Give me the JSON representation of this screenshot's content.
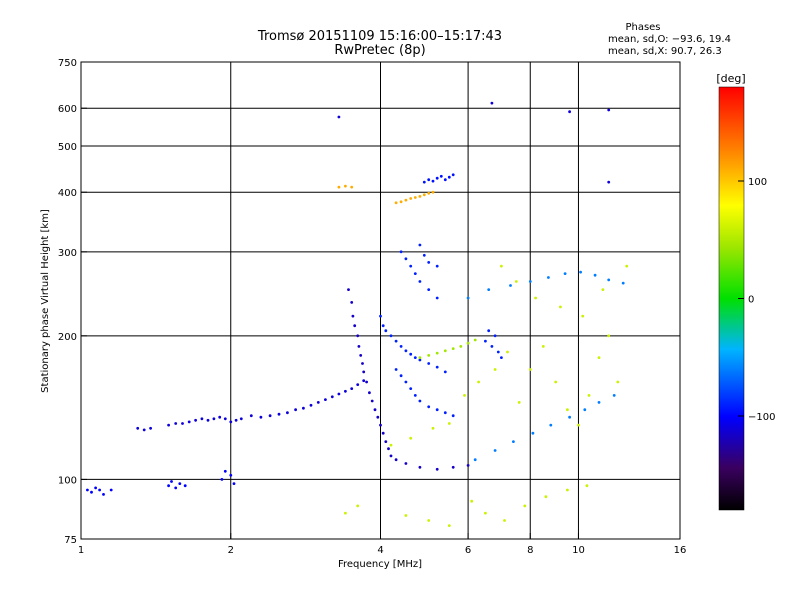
{
  "chart_data": {
    "type": "scatter",
    "title": "Tromsø 20151109 15:16:00–15:17:43",
    "subtitle": "RwPretec (8p)",
    "xlabel": "Frequency [MHz]",
    "ylabel": "Stationary phase Virtual Height [km]",
    "xscale": "log",
    "yscale": "log",
    "xlim": [
      1,
      16
    ],
    "ylim": [
      75,
      750
    ],
    "x_ticks": [
      1,
      2,
      4,
      6,
      8,
      10,
      16
    ],
    "y_ticks": [
      75,
      100,
      200,
      300,
      400,
      500,
      600,
      750
    ],
    "x_gridlines": [
      2,
      4,
      6,
      8,
      10
    ],
    "y_gridlines": [
      100,
      200,
      300,
      400,
      500,
      600
    ],
    "legend": {
      "heading": "Phases",
      "line_o": "mean, sd,O: −93.6, 19.4",
      "line_x": "mean, sd,X:  90.7, 26.3"
    },
    "colorbar": {
      "label": "[deg]",
      "range": [
        -180,
        180
      ],
      "ticks": [
        100,
        0,
        -100
      ],
      "tick_labels": [
        "100",
        "0",
        "−100"
      ]
    },
    "clusters": [
      {
        "name": "low-E-trace",
        "phase": -100,
        "points": [
          [
            1.03,
            95
          ],
          [
            1.05,
            94
          ],
          [
            1.07,
            96
          ],
          [
            1.09,
            95
          ],
          [
            1.11,
            93
          ],
          [
            1.15,
            95
          ],
          [
            1.5,
            97
          ],
          [
            1.52,
            99
          ],
          [
            1.55,
            96
          ],
          [
            1.58,
            98
          ],
          [
            1.62,
            97
          ],
          [
            1.92,
            100
          ],
          [
            1.95,
            104
          ],
          [
            2.0,
            102
          ],
          [
            2.03,
            98
          ]
        ]
      },
      {
        "name": "E-layer-trace",
        "phase": -110,
        "points": [
          [
            1.3,
            128
          ],
          [
            1.34,
            127
          ],
          [
            1.38,
            128
          ],
          [
            1.5,
            130
          ],
          [
            1.55,
            131
          ],
          [
            1.6,
            131
          ],
          [
            1.65,
            132
          ],
          [
            1.7,
            133
          ],
          [
            1.75,
            134
          ],
          [
            1.8,
            133
          ],
          [
            1.85,
            134
          ],
          [
            1.9,
            135
          ],
          [
            1.95,
            134
          ],
          [
            2.0,
            132
          ],
          [
            2.05,
            133
          ],
          [
            2.1,
            134
          ],
          [
            2.2,
            136
          ],
          [
            2.3,
            135
          ],
          [
            2.4,
            136
          ],
          [
            2.5,
            137
          ],
          [
            2.6,
            138
          ],
          [
            2.7,
            140
          ],
          [
            2.8,
            141
          ],
          [
            2.9,
            143
          ],
          [
            3.0,
            145
          ],
          [
            3.1,
            147
          ],
          [
            3.2,
            149
          ],
          [
            3.3,
            151
          ],
          [
            3.4,
            153
          ],
          [
            3.5,
            155
          ],
          [
            3.6,
            158
          ],
          [
            3.7,
            161
          ]
        ]
      },
      {
        "name": "F-vertical-trace",
        "phase": -115,
        "points": [
          [
            3.45,
            250
          ],
          [
            3.5,
            235
          ],
          [
            3.52,
            220
          ],
          [
            3.55,
            210
          ],
          [
            3.6,
            200
          ],
          [
            3.62,
            190
          ],
          [
            3.65,
            182
          ],
          [
            3.68,
            175
          ],
          [
            3.7,
            168
          ],
          [
            3.75,
            160
          ],
          [
            3.8,
            152
          ],
          [
            3.85,
            146
          ],
          [
            3.9,
            140
          ],
          [
            3.95,
            135
          ],
          [
            4.0,
            130
          ],
          [
            4.05,
            125
          ],
          [
            4.1,
            120
          ],
          [
            4.15,
            116
          ],
          [
            4.2,
            112
          ],
          [
            4.3,
            110
          ],
          [
            4.5,
            108
          ],
          [
            4.8,
            106
          ],
          [
            5.2,
            105
          ],
          [
            5.6,
            106
          ],
          [
            6.0,
            107
          ]
        ]
      },
      {
        "name": "F-spread",
        "phase": -90,
        "points": [
          [
            4.0,
            220
          ],
          [
            4.05,
            210
          ],
          [
            4.1,
            205
          ],
          [
            4.2,
            200
          ],
          [
            4.3,
            195
          ],
          [
            4.4,
            190
          ],
          [
            4.5,
            186
          ],
          [
            4.6,
            183
          ],
          [
            4.7,
            180
          ],
          [
            4.8,
            178
          ],
          [
            5.0,
            175
          ],
          [
            5.2,
            172
          ],
          [
            5.4,
            168
          ],
          [
            4.3,
            170
          ],
          [
            4.4,
            165
          ],
          [
            4.5,
            160
          ],
          [
            4.6,
            155
          ],
          [
            4.7,
            150
          ],
          [
            4.8,
            146
          ],
          [
            5.0,
            142
          ],
          [
            5.2,
            140
          ],
          [
            5.4,
            138
          ],
          [
            5.6,
            136
          ],
          [
            4.4,
            300
          ],
          [
            4.5,
            290
          ],
          [
            4.6,
            280
          ],
          [
            4.7,
            270
          ],
          [
            4.8,
            260
          ],
          [
            5.0,
            250
          ],
          [
            5.2,
            240
          ],
          [
            4.8,
            310
          ],
          [
            4.9,
            295
          ],
          [
            5.0,
            285
          ],
          [
            5.2,
            280
          ],
          [
            6.5,
            195
          ],
          [
            6.7,
            190
          ],
          [
            6.9,
            185
          ],
          [
            6.8,
            200
          ],
          [
            7.0,
            180
          ],
          [
            6.6,
            205
          ]
        ]
      },
      {
        "name": "F2-O-trace",
        "phase": 45,
        "points": [
          [
            4.8,
            180
          ],
          [
            5.0,
            182
          ],
          [
            5.2,
            184
          ],
          [
            5.4,
            186
          ],
          [
            5.6,
            188
          ],
          [
            5.8,
            190
          ],
          [
            6.0,
            193
          ],
          [
            6.2,
            196
          ]
        ]
      },
      {
        "name": "F2-echo",
        "phase": 110,
        "points": [
          [
            4.3,
            380
          ],
          [
            4.4,
            382
          ],
          [
            4.5,
            385
          ],
          [
            4.6,
            388
          ],
          [
            4.7,
            390
          ],
          [
            4.8,
            392
          ],
          [
            4.9,
            395
          ],
          [
            5.0,
            398
          ],
          [
            5.1,
            400
          ],
          [
            3.3,
            410
          ],
          [
            3.4,
            412
          ],
          [
            3.5,
            410
          ]
        ]
      },
      {
        "name": "F2-upper",
        "phase": -95,
        "points": [
          [
            4.9,
            420
          ],
          [
            5.0,
            425
          ],
          [
            5.1,
            422
          ],
          [
            5.2,
            428
          ],
          [
            5.3,
            432
          ],
          [
            5.4,
            425
          ],
          [
            5.5,
            430
          ],
          [
            5.6,
            435
          ]
        ]
      },
      {
        "name": "scatter-mixed",
        "phase": 60,
        "points": [
          [
            4.2,
            118
          ],
          [
            4.6,
            122
          ],
          [
            5.1,
            128
          ],
          [
            5.5,
            131
          ],
          [
            5.9,
            150
          ],
          [
            6.3,
            160
          ],
          [
            6.8,
            170
          ],
          [
            7.2,
            185
          ],
          [
            7.6,
            145
          ],
          [
            8.0,
            170
          ],
          [
            8.5,
            190
          ],
          [
            9.0,
            160
          ],
          [
            9.5,
            140
          ],
          [
            10.0,
            130
          ],
          [
            10.5,
            150
          ],
          [
            11.0,
            180
          ],
          [
            11.5,
            200
          ],
          [
            12.0,
            160
          ],
          [
            7.0,
            280
          ],
          [
            7.5,
            260
          ],
          [
            8.2,
            240
          ],
          [
            9.2,
            230
          ],
          [
            10.2,
            220
          ],
          [
            11.2,
            250
          ],
          [
            12.5,
            280
          ],
          [
            6.1,
            90
          ],
          [
            6.5,
            85
          ],
          [
            7.1,
            82
          ],
          [
            7.8,
            88
          ],
          [
            8.6,
            92
          ],
          [
            9.5,
            95
          ],
          [
            10.4,
            97
          ],
          [
            5.0,
            82
          ],
          [
            5.5,
            80
          ],
          [
            4.5,
            84
          ],
          [
            3.6,
            88
          ],
          [
            3.4,
            85
          ]
        ]
      },
      {
        "name": "scatter-cold",
        "phase": -60,
        "points": [
          [
            6.2,
            110
          ],
          [
            6.8,
            115
          ],
          [
            7.4,
            120
          ],
          [
            8.1,
            125
          ],
          [
            8.8,
            130
          ],
          [
            9.6,
            135
          ],
          [
            10.3,
            140
          ],
          [
            11.0,
            145
          ],
          [
            11.8,
            150
          ],
          [
            6.0,
            240
          ],
          [
            6.6,
            250
          ],
          [
            7.3,
            255
          ],
          [
            8.0,
            260
          ],
          [
            8.7,
            265
          ],
          [
            9.4,
            270
          ],
          [
            10.1,
            272
          ],
          [
            10.8,
            268
          ],
          [
            11.5,
            262
          ],
          [
            12.3,
            258
          ]
        ]
      },
      {
        "name": "outliers",
        "phase": -110,
        "points": [
          [
            3.3,
            575
          ],
          [
            6.7,
            615
          ],
          [
            9.6,
            590
          ],
          [
            11.5,
            595
          ],
          [
            11.5,
            420
          ]
        ]
      }
    ]
  }
}
